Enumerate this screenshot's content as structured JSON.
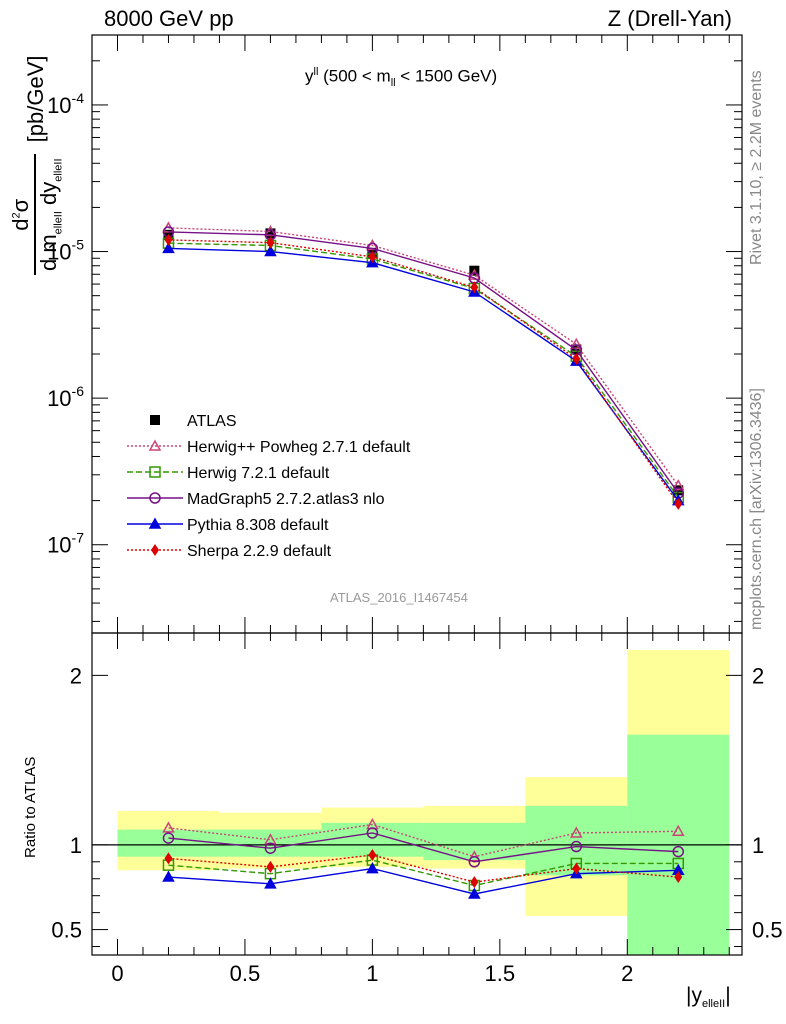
{
  "header": {
    "left": "8000 GeV pp",
    "right": "Z (Drell-Yan)",
    "side_top": "Rivet 3.1.10, ≥ 2.2M events",
    "side_bottom": "mcplots.cern.ch [arXiv:1306.3436]",
    "watermark": "ATLAS_2016_I1467454"
  },
  "chart_data": [
    {
      "type": "line",
      "title": "y^ll (500 < m_ll < 1500 GeV)",
      "title_parts": {
        "main": "y",
        "sup": "ll",
        "rest1": " (500 < m",
        "sub": "ll",
        "rest2": " < 1500 GeV)"
      },
      "ylabel": "d²σ / d m_elleII dy_elleII [pb/GeV]",
      "ylabel_unit": "[pb/GeV]",
      "yscale": "log",
      "ylim": [
        2.5e-08,
        0.0003
      ],
      "xlim": [
        -0.1,
        2.45
      ],
      "yticks": [
        "10^-7",
        "10^-6",
        "10^-5",
        "10^-4"
      ],
      "x": [
        0.2,
        0.6,
        1.0,
        1.4,
        1.8,
        2.2
      ],
      "series": [
        {
          "name": "ATLAS",
          "color": "#000000",
          "marker": "square-filled",
          "line": "none",
          "values": [
            1.3e-05,
            1.33e-05,
            9.8e-06,
            7.4e-06,
            2.15e-06,
            2.35e-07
          ]
        },
        {
          "name": "Herwig++ Powheg 2.7.1 default",
          "color": "#cc4477",
          "marker": "triangle-open",
          "line": "dotted",
          "values": [
            1.45e-05,
            1.37e-05,
            1.1e-05,
            6.9e-06,
            2.33e-06,
            2.53e-07
          ]
        },
        {
          "name": "Herwig 7.2.1 default",
          "color": "#339900",
          "marker": "square-open",
          "line": "dashed",
          "values": [
            1.14e-05,
            1.1e-05,
            8.9e-06,
            5.6e-06,
            1.93e-06,
            2.1e-07
          ]
        },
        {
          "name": "MadGraph5 2.7.2.atlas3 nlo",
          "color": "#771188",
          "marker": "circle-open",
          "line": "solid",
          "values": [
            1.36e-05,
            1.3e-05,
            1.05e-05,
            6.6e-06,
            2.13e-06,
            2.25e-07
          ]
        },
        {
          "name": "Pythia 8.308 default",
          "color": "#0000dd",
          "marker": "triangle-filled",
          "line": "solid",
          "values": [
            1.05e-05,
            1e-05,
            8.4e-06,
            5.3e-06,
            1.79e-06,
            2e-07
          ]
        },
        {
          "name": "Sherpa 2.2.9 default",
          "color": "#dd0000",
          "marker": "diamond-filled",
          "line": "dotted",
          "values": [
            1.2e-05,
            1.15e-05,
            9.2e-06,
            5.7e-06,
            1.85e-06,
            1.9e-07
          ]
        }
      ]
    },
    {
      "type": "line",
      "ylabel": "Ratio to ATLAS",
      "xlabel": "|y_elleII|",
      "xlim": [
        -0.1,
        2.45
      ],
      "ylim": [
        0.35,
        2.25
      ],
      "xticks": [
        "0",
        "0.5",
        "1",
        "1.5",
        "2"
      ],
      "yticks": [
        "0.5",
        "1",
        "2"
      ],
      "x": [
        0.2,
        0.6,
        1.0,
        1.4,
        1.8,
        2.2
      ],
      "bands": {
        "edges": [
          0.0,
          0.4,
          0.8,
          1.2,
          1.6,
          2.0,
          2.4
        ],
        "yellow": [
          [
            0.85,
            1.2
          ],
          [
            0.86,
            1.19
          ],
          [
            0.87,
            1.22
          ],
          [
            0.86,
            1.23
          ],
          [
            0.58,
            1.4
          ],
          [
            0.35,
            2.15
          ]
        ],
        "green": [
          [
            0.93,
            1.09
          ],
          [
            0.93,
            1.09
          ],
          [
            0.93,
            1.13
          ],
          [
            0.91,
            1.13
          ],
          [
            0.82,
            1.23
          ],
          [
            0.35,
            1.65
          ]
        ],
        "yellow_color": "#ffff99",
        "green_color": "#99ff99"
      },
      "series": [
        {
          "name": "Herwig++ Powheg 2.7.1 default",
          "values": [
            1.1,
            1.03,
            1.12,
            0.93,
            1.07,
            1.08
          ]
        },
        {
          "name": "Herwig 7.2.1 default",
          "values": [
            0.88,
            0.83,
            0.91,
            0.76,
            0.89,
            0.89
          ]
        },
        {
          "name": "MadGraph5 2.7.2.atlas3 nlo",
          "values": [
            1.04,
            0.98,
            1.07,
            0.9,
            0.99,
            0.96
          ]
        },
        {
          "name": "Pythia 8.308 default",
          "values": [
            0.81,
            0.77,
            0.86,
            0.71,
            0.83,
            0.85
          ]
        },
        {
          "name": "Sherpa 2.2.9 default",
          "values": [
            0.92,
            0.87,
            0.94,
            0.78,
            0.86,
            0.81
          ]
        }
      ]
    }
  ]
}
